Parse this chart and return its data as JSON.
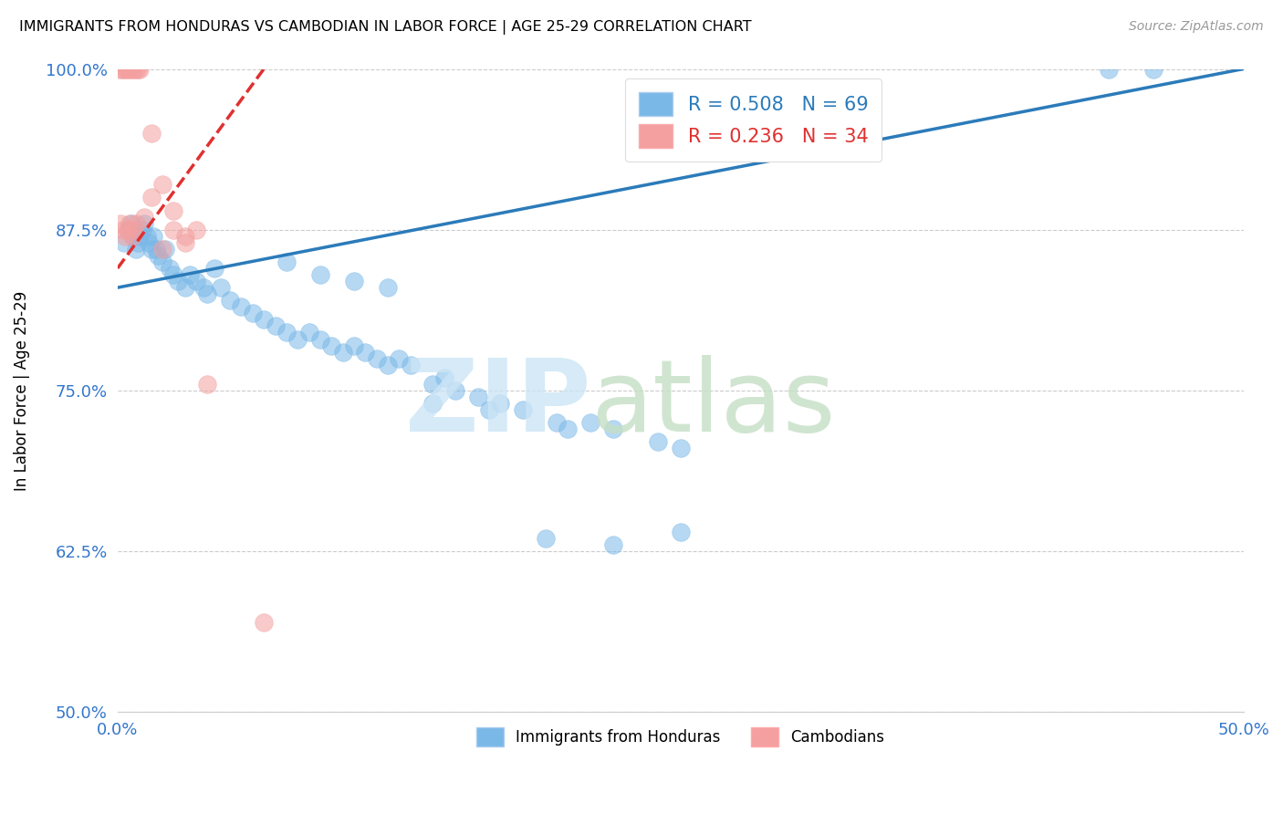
{
  "title": "IMMIGRANTS FROM HONDURAS VS CAMBODIAN IN LABOR FORCE | AGE 25-29 CORRELATION CHART",
  "source": "Source: ZipAtlas.com",
  "ylabel": "In Labor Force | Age 25-29",
  "xlim": [
    0.0,
    50.0
  ],
  "ylim": [
    50.0,
    100.0
  ],
  "xtick_labels": [
    "0.0%",
    "",
    "",
    "",
    "50.0%"
  ],
  "ytick_labels": [
    "50.0%",
    "62.5%",
    "75.0%",
    "87.5%",
    "100.0%"
  ],
  "blue_color": "#7ab8e8",
  "pink_color": "#f4a0a0",
  "blue_line_color": "#2b7bba",
  "pink_line_color": "#e03030",
  "legend_label_blue": "Immigrants from Honduras",
  "legend_label_pink": "Cambodians",
  "blue_line_x": [
    0.0,
    50.0
  ],
  "blue_line_y": [
    83.0,
    100.0
  ],
  "pink_line_x": [
    0.0,
    6.5
  ],
  "pink_line_y": [
    84.5,
    100.0
  ],
  "blue_x": [
    0.3,
    0.5,
    0.6,
    0.7,
    0.8,
    0.9,
    1.0,
    1.1,
    1.2,
    1.3,
    1.4,
    1.5,
    1.6,
    1.7,
    1.8,
    2.0,
    2.1,
    2.3,
    2.5,
    2.7,
    3.0,
    3.2,
    3.5,
    3.8,
    4.0,
    4.3,
    4.6,
    5.0,
    5.5,
    6.0,
    6.5,
    7.0,
    7.5,
    8.0,
    8.5,
    9.0,
    9.5,
    10.0,
    10.5,
    11.0,
    11.5,
    12.0,
    12.5,
    13.0,
    14.0,
    14.5,
    15.0,
    16.0,
    17.0,
    18.0,
    19.5,
    20.0,
    21.0,
    22.0,
    24.0,
    25.0,
    7.5,
    9.0,
    10.5,
    12.0,
    14.0,
    16.5,
    19.0,
    22.0,
    25.0,
    44.0,
    46.0
  ],
  "blue_y": [
    86.5,
    87.5,
    88.0,
    87.0,
    86.0,
    86.5,
    87.0,
    87.5,
    88.0,
    87.0,
    86.5,
    86.0,
    87.0,
    86.0,
    85.5,
    85.0,
    86.0,
    84.5,
    84.0,
    83.5,
    83.0,
    84.0,
    83.5,
    83.0,
    82.5,
    84.5,
    83.0,
    82.0,
    81.5,
    81.0,
    80.5,
    80.0,
    79.5,
    79.0,
    79.5,
    79.0,
    78.5,
    78.0,
    78.5,
    78.0,
    77.5,
    77.0,
    77.5,
    77.0,
    75.5,
    76.0,
    75.0,
    74.5,
    74.0,
    73.5,
    72.5,
    72.0,
    72.5,
    72.0,
    71.0,
    70.5,
    85.0,
    84.0,
    83.5,
    83.0,
    74.0,
    73.5,
    63.5,
    63.0,
    64.0,
    100.0,
    100.0
  ],
  "pink_x": [
    0.1,
    0.2,
    0.3,
    0.4,
    0.5,
    0.6,
    0.7,
    0.8,
    0.9,
    1.0,
    0.15,
    0.25,
    0.35,
    0.45,
    0.55,
    0.65,
    0.75,
    1.5,
    2.0,
    2.5,
    3.0,
    3.5,
    4.0,
    0.8,
    1.2,
    2.0,
    3.0,
    1.5,
    2.5,
    6.5
  ],
  "pink_y": [
    100.0,
    100.0,
    100.0,
    100.0,
    100.0,
    100.0,
    100.0,
    100.0,
    100.0,
    100.0,
    88.0,
    87.5,
    87.0,
    87.5,
    88.0,
    87.0,
    87.5,
    90.0,
    91.0,
    87.5,
    87.0,
    87.5,
    75.5,
    88.0,
    88.5,
    86.0,
    86.5,
    95.0,
    89.0,
    57.0
  ]
}
